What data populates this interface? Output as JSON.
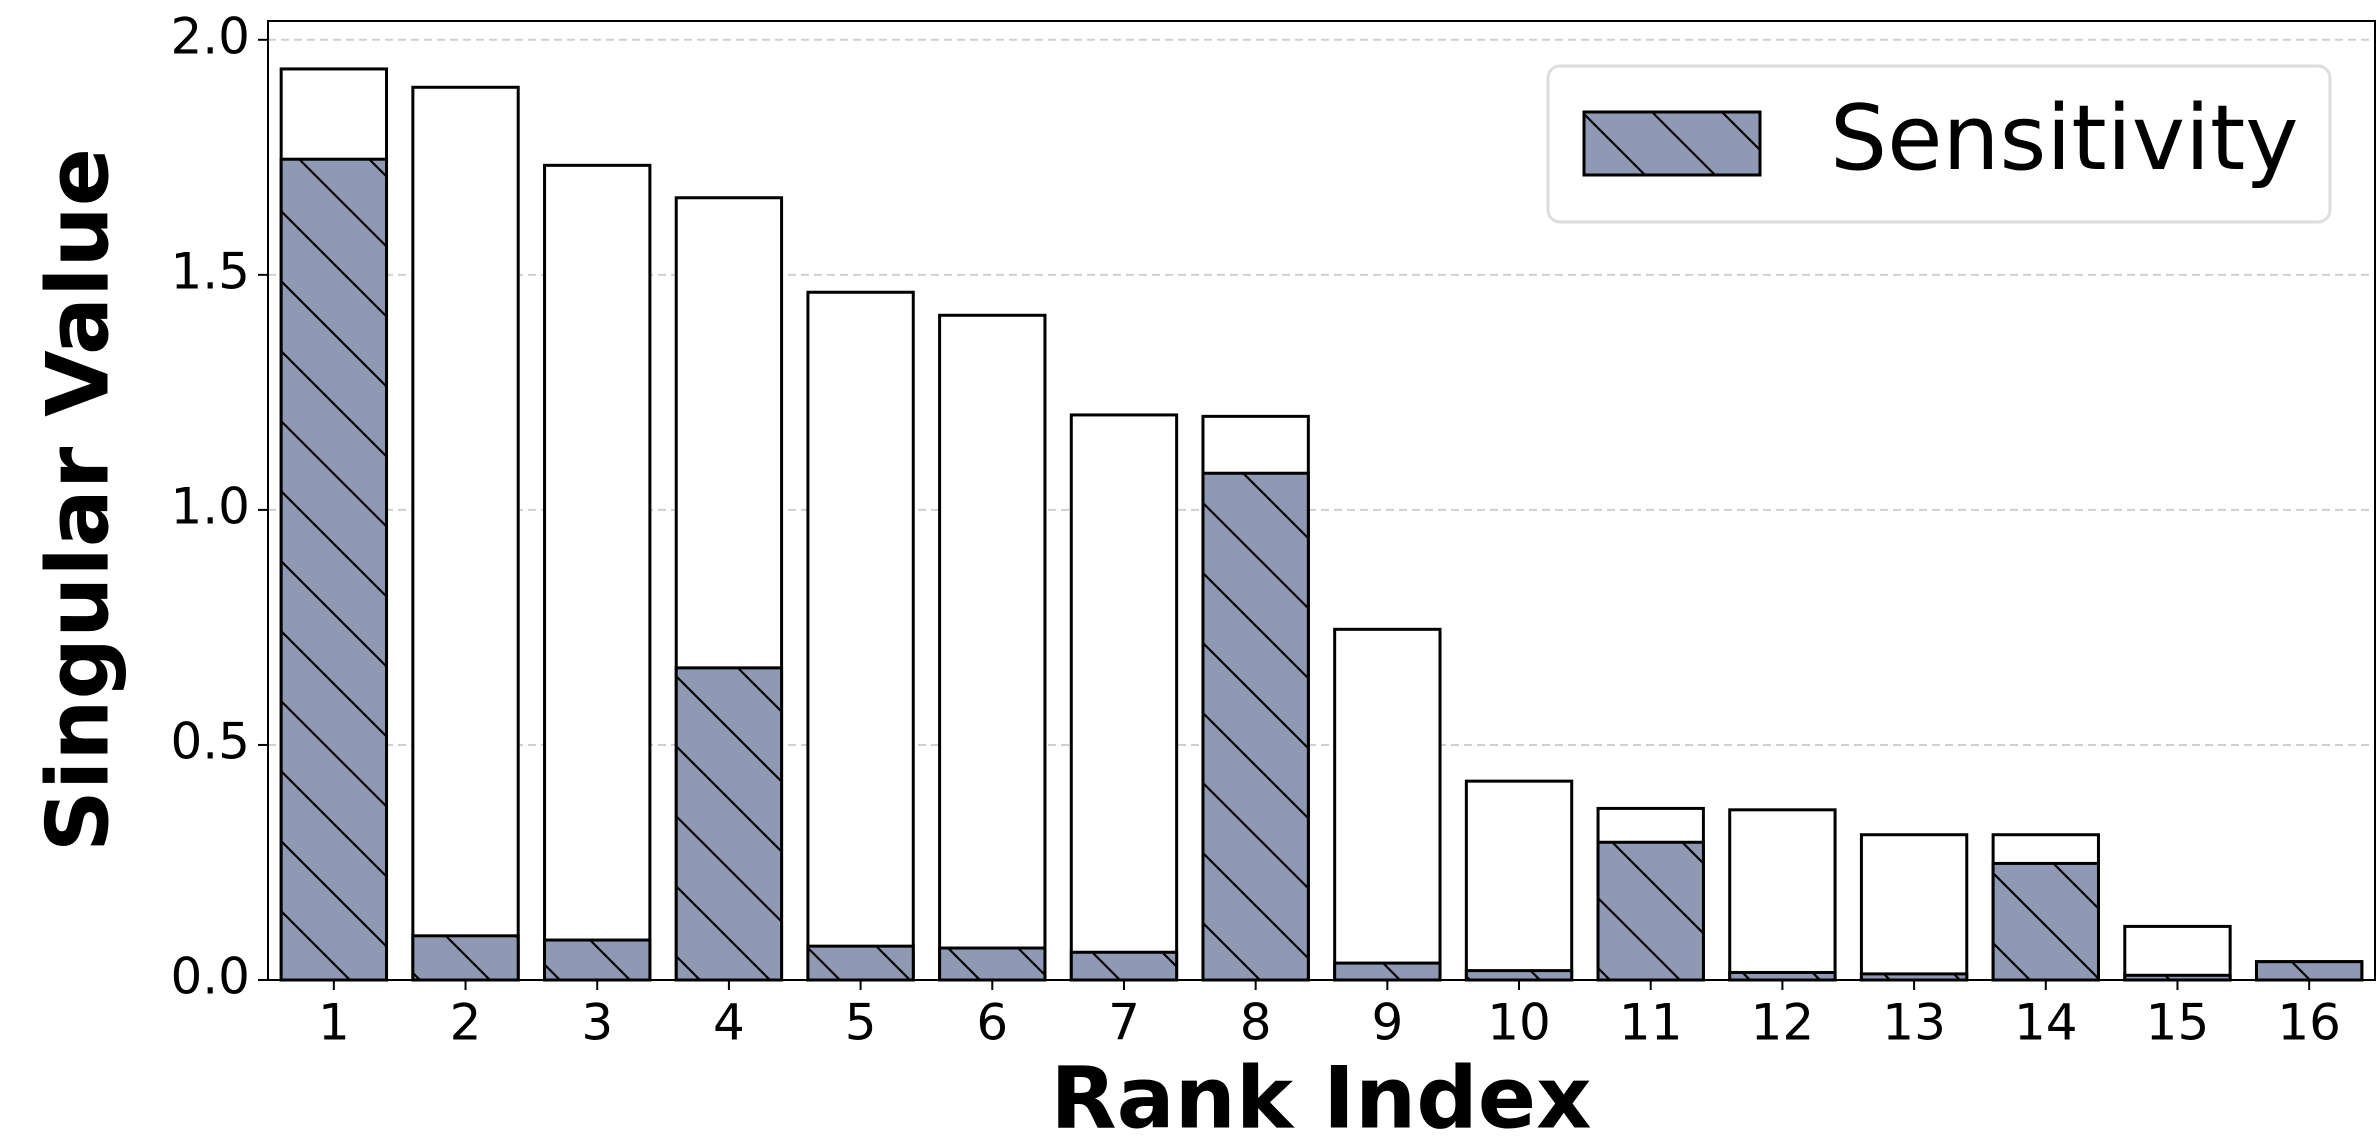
{
  "chart_data": {
    "type": "bar",
    "overlay": true,
    "x_label": "Rank Index",
    "y_label": "Singular Value",
    "categories": [
      "1",
      "2",
      "3",
      "4",
      "5",
      "6",
      "7",
      "8",
      "9",
      "10",
      "11",
      "12",
      "13",
      "14",
      "15",
      "16"
    ],
    "series": [
      {
        "color": "#ffffff",
        "hatch": false,
        "values": [
          1.938,
          1.899,
          1.733,
          1.664,
          1.463,
          1.414,
          1.202,
          1.199,
          0.746,
          0.423,
          0.365,
          0.362,
          0.309,
          0.309,
          0.114,
          0.039
        ]
      },
      {
        "name": "Sensitivity",
        "color": "#8f99b3",
        "hatch": true,
        "values": [
          1.746,
          0.094,
          0.085,
          0.664,
          0.072,
          0.068,
          0.059,
          1.078,
          0.036,
          0.02,
          0.293,
          0.016,
          0.013,
          0.248,
          0.01,
          0.039
        ]
      }
    ],
    "ylim": [
      0,
      2.04
    ],
    "yticks": [
      {
        "value": 0,
        "label": "0.0"
      },
      0.5,
      {
        "value": 1,
        "label": "1.0"
      },
      1.5,
      {
        "value": 2,
        "label": "2.0"
      }
    ],
    "grid": true,
    "legend": "upper right"
  }
}
